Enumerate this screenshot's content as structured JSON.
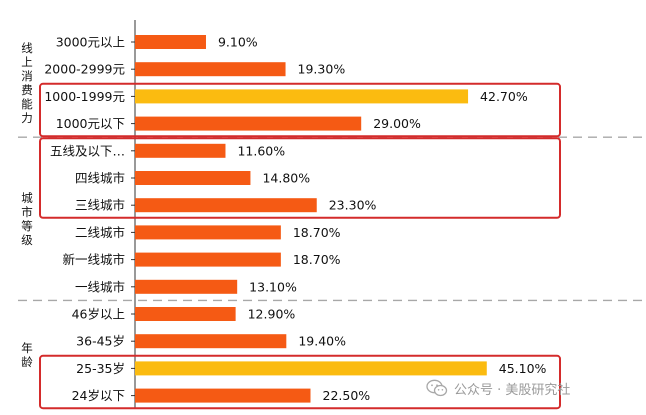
{
  "chart_data": {
    "type": "bar",
    "orientation": "horizontal",
    "categories": [
      "3000元以上",
      "2000-2999元",
      "1000-1999元",
      "1000元以下",
      "五线及以下…",
      "四线城市",
      "三线城市",
      "二线城市",
      "新一线城市",
      "一线城市",
      "46岁以上",
      "36-45岁",
      "25-35岁",
      "24岁以下"
    ],
    "values": [
      9.1,
      19.3,
      42.7,
      29.0,
      11.6,
      14.8,
      23.3,
      18.7,
      18.7,
      13.1,
      12.9,
      19.4,
      45.1,
      22.5
    ],
    "value_labels": [
      "9.10%",
      "19.30%",
      "42.70%",
      "29.00%",
      "11.60%",
      "14.80%",
      "23.30%",
      "18.70%",
      "18.70%",
      "13.10%",
      "12.90%",
      "19.40%",
      "45.10%",
      "22.50%"
    ],
    "highlighted": [
      false,
      false,
      true,
      false,
      false,
      false,
      false,
      false,
      false,
      false,
      false,
      false,
      true,
      false
    ],
    "groups": [
      {
        "label": "线上消费能力",
        "start": 0,
        "end": 3
      },
      {
        "label": "城市等级",
        "start": 4,
        "end": 9
      },
      {
        "label": "年龄",
        "start": 10,
        "end": 13
      }
    ],
    "highlight_boxes": [
      {
        "start": 2,
        "end": 3
      },
      {
        "start": 4,
        "end": 6
      },
      {
        "start": 12,
        "end": 13
      }
    ],
    "xlim": [
      0,
      50
    ],
    "colors": {
      "bar": "#f55a14",
      "highlight_bar": "#fbbb10",
      "box": "#d42b2b",
      "divider": "#a8a8a8",
      "axis": "#333333",
      "text": "#111111"
    }
  },
  "watermark": {
    "text": "公众号 · 美股研究社",
    "icon": "wechat-icon"
  }
}
